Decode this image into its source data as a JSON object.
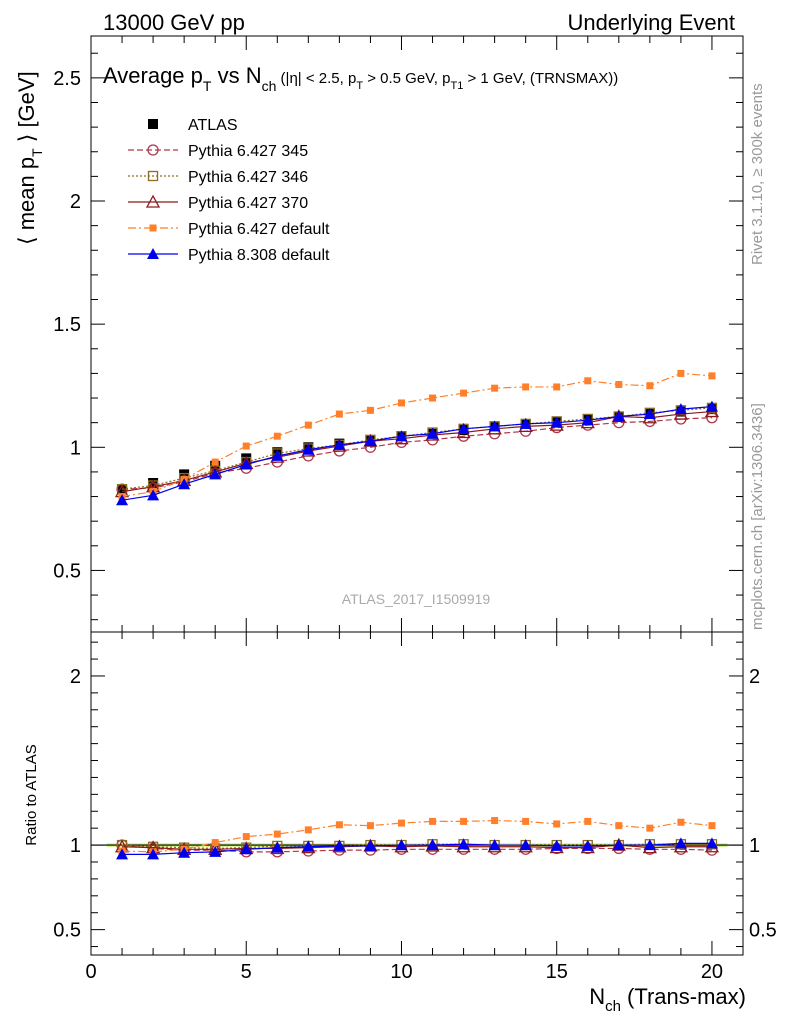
{
  "header": {
    "left": "13000 GeV pp",
    "right": "Underlying Event"
  },
  "side_labels": {
    "rivet": "Rivet 3.1.10, ≥ 300k events",
    "mcplots": "mcplots.cern.ch [arXiv:1306.3436]"
  },
  "watermark": "ATLAS_2017_I1509919",
  "colors": {
    "atlas": "#000000",
    "p345": "#b0374a",
    "p346": "#8c6d1f",
    "p370": "#8b1a1a",
    "p6def": "#ff7f2a",
    "p8def": "#0000ee",
    "ratio_band": "#c9f07a"
  },
  "chart_data": [
    {
      "type": "line",
      "panel": "main",
      "title": "Average p_T vs N_ch (|η| < 2.5, p_T > 0.5 GeV, p_T1 > 1 GeV, (TRNSMAX))",
      "title_parts": {
        "a": "Average p",
        "a_sub": "T",
        "b": " vs N",
        "b_sub": "ch",
        "c": " (|η| < 2.5, p",
        "c_sub": "T",
        "d": " > 0.5 GeV, p",
        "d_sub": "T1",
        "e": " > 1 GeV, (TRNSMAX))"
      },
      "ylabel": "⟨ mean p_T ⟩ [GeV]",
      "ylabel_parts": {
        "a": "⟨ mean p",
        "sub": "T",
        "b": " ⟩ [GeV]"
      },
      "xlabel": "",
      "xlim": [
        0,
        21
      ],
      "ylim": [
        0.25,
        2.67
      ],
      "yticks": [
        0.5,
        1,
        1.5,
        2,
        2.5
      ],
      "ytick_labels": [
        "0.5",
        "1",
        "1.5",
        "2",
        "2.5"
      ],
      "x": [
        1,
        2,
        3,
        4,
        5,
        6,
        7,
        8,
        9,
        10,
        11,
        12,
        13,
        14,
        15,
        16,
        17,
        18,
        19,
        20
      ],
      "legend_position": "top-left",
      "series": [
        {
          "name": "ATLAS",
          "key": "atlas",
          "values": [
            0.83,
            0.855,
            0.89,
            0.925,
            0.955,
            0.98,
            1.0,
            1.015,
            1.03,
            1.045,
            1.055,
            1.07,
            1.085,
            1.095,
            1.105,
            1.115,
            1.125,
            1.135,
            1.145,
            1.155
          ]
        },
        {
          "name": "Pythia 6.427 345",
          "key": "p345",
          "values": [
            0.83,
            0.835,
            0.86,
            0.895,
            0.915,
            0.94,
            0.965,
            0.985,
            1.0,
            1.02,
            1.03,
            1.045,
            1.055,
            1.065,
            1.08,
            1.09,
            1.1,
            1.105,
            1.115,
            1.12
          ]
        },
        {
          "name": "Pythia 6.427 346",
          "key": "p346",
          "values": [
            0.83,
            0.845,
            0.875,
            0.905,
            0.94,
            0.975,
            0.995,
            1.01,
            1.03,
            1.045,
            1.06,
            1.075,
            1.085,
            1.095,
            1.105,
            1.115,
            1.125,
            1.14,
            1.15,
            1.16
          ]
        },
        {
          "name": "Pythia 6.427 370",
          "key": "p370",
          "values": [
            0.82,
            0.84,
            0.865,
            0.9,
            0.935,
            0.96,
            0.985,
            1.005,
            1.025,
            1.035,
            1.05,
            1.06,
            1.075,
            1.085,
            1.09,
            1.1,
            1.125,
            1.12,
            1.135,
            1.145
          ]
        },
        {
          "name": "Pythia 6.427 default",
          "key": "p6def",
          "values": [
            0.8,
            0.82,
            0.87,
            0.94,
            1.005,
            1.045,
            1.09,
            1.135,
            1.15,
            1.18,
            1.2,
            1.22,
            1.24,
            1.245,
            1.245,
            1.27,
            1.255,
            1.25,
            1.3,
            1.29
          ]
        },
        {
          "name": "Pythia 8.308 default",
          "key": "p8def",
          "values": [
            0.785,
            0.805,
            0.85,
            0.89,
            0.93,
            0.965,
            0.99,
            1.01,
            1.025,
            1.045,
            1.055,
            1.075,
            1.085,
            1.095,
            1.1,
            1.11,
            1.125,
            1.135,
            1.155,
            1.165
          ]
        }
      ]
    },
    {
      "type": "line",
      "panel": "ratio",
      "ylabel": "Ratio to ATLAS",
      "xlabel": "N_ch (Trans-max)",
      "xlabel_parts": {
        "a": "N",
        "sub": "ch",
        "b": " (Trans-max)"
      },
      "xlim": [
        0,
        21
      ],
      "ylim": [
        0.35,
        2.26
      ],
      "xticks": [
        0,
        5,
        10,
        15,
        20
      ],
      "xtick_labels": [
        "0",
        "5",
        "10",
        "15",
        "20"
      ],
      "yticks": [
        0.5,
        1,
        2
      ],
      "ytick_labels": [
        "0.5",
        "1",
        "2"
      ],
      "x": [
        1,
        2,
        3,
        4,
        5,
        6,
        7,
        8,
        9,
        10,
        11,
        12,
        13,
        14,
        15,
        16,
        17,
        18,
        19,
        20
      ],
      "series": [
        {
          "key": "p345",
          "values": [
            1.0,
            0.98,
            0.97,
            0.97,
            0.96,
            0.96,
            0.965,
            0.97,
            0.97,
            0.975,
            0.975,
            0.975,
            0.975,
            0.975,
            0.98,
            0.98,
            0.98,
            0.975,
            0.975,
            0.97
          ]
        },
        {
          "key": "p346",
          "values": [
            1.0,
            0.99,
            0.985,
            0.98,
            0.985,
            0.995,
            0.995,
            0.995,
            1.0,
            1.0,
            1.005,
            1.005,
            1.0,
            1.0,
            1.0,
            1.0,
            1.0,
            1.005,
            1.005,
            1.005
          ]
        },
        {
          "key": "p370",
          "values": [
            0.99,
            0.985,
            0.975,
            0.975,
            0.98,
            0.98,
            0.985,
            0.99,
            0.995,
            0.99,
            0.995,
            0.99,
            0.99,
            0.99,
            0.985,
            0.985,
            1.0,
            0.985,
            0.99,
            0.99
          ]
        },
        {
          "key": "p6def",
          "values": [
            0.965,
            0.96,
            0.975,
            1.015,
            1.05,
            1.065,
            1.09,
            1.12,
            1.115,
            1.13,
            1.14,
            1.14,
            1.145,
            1.14,
            1.125,
            1.14,
            1.115,
            1.1,
            1.135,
            1.115
          ]
        },
        {
          "key": "p8def",
          "values": [
            0.945,
            0.945,
            0.955,
            0.96,
            0.975,
            0.985,
            0.99,
            0.995,
            0.995,
            1.0,
            1.0,
            1.005,
            1.0,
            1.0,
            0.995,
            0.995,
            1.0,
            1.0,
            1.01,
            1.01
          ]
        }
      ]
    }
  ]
}
